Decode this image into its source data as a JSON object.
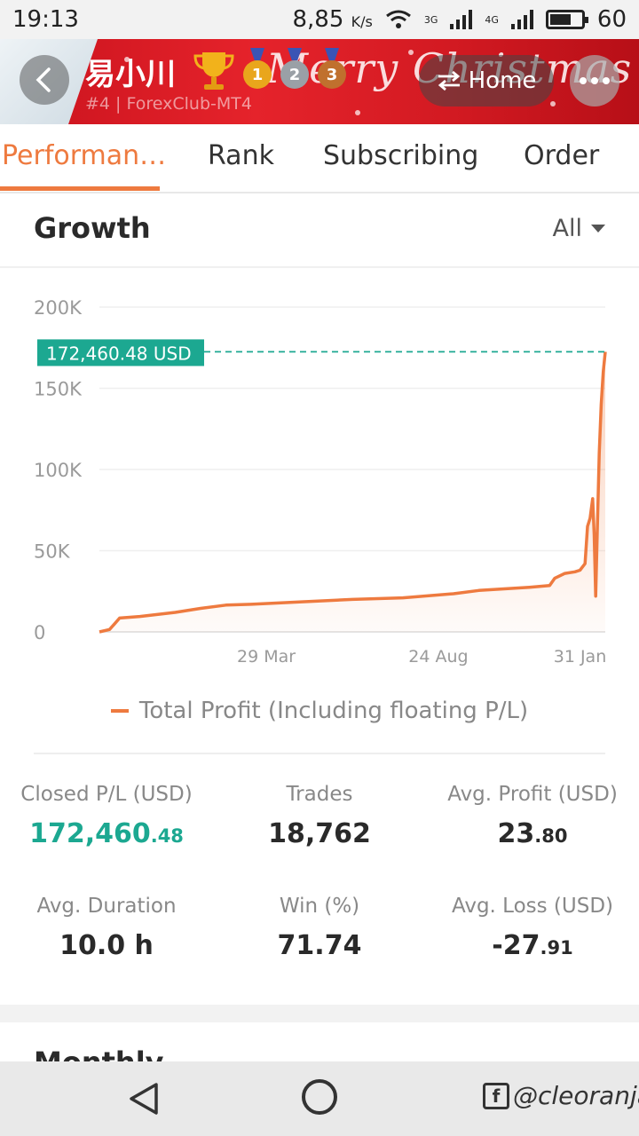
{
  "status_bar": {
    "time": "19:13",
    "speed": "8,85",
    "speed_unit": "K/s",
    "net1": "3G",
    "net2": "4G",
    "battery": "60"
  },
  "header": {
    "trader_name": "易小川",
    "subtitle": "#4 | ForexClub-MT4",
    "banner_text": "Merry Christmas",
    "medals": [
      "1",
      "2",
      "3"
    ],
    "home_label": "Home"
  },
  "tabs": [
    {
      "label": "Performan…",
      "active": true
    },
    {
      "label": "Rank",
      "active": false
    },
    {
      "label": "Subscribing",
      "active": false
    },
    {
      "label": "Order",
      "active": false
    }
  ],
  "growth": {
    "title": "Growth",
    "filter": "All"
  },
  "chart_data": {
    "type": "area",
    "y_ticks": [
      "200K",
      "150K",
      "100K",
      "50K",
      "0"
    ],
    "x_ticks": [
      "29 Mar",
      "24 Aug",
      "31 Jan"
    ],
    "ylim": [
      0,
      200000
    ],
    "current_value_label": "172,460.48 USD",
    "current_value": 172460.48,
    "series": [
      {
        "name": "Total Profit (Including floating P/L)",
        "color": "#ee7a3f",
        "points": [
          [
            0.0,
            0
          ],
          [
            0.02,
            1500
          ],
          [
            0.03,
            5000
          ],
          [
            0.04,
            8500
          ],
          [
            0.08,
            9500
          ],
          [
            0.15,
            12000
          ],
          [
            0.2,
            14500
          ],
          [
            0.25,
            16500
          ],
          [
            0.3,
            17000
          ],
          [
            0.4,
            18500
          ],
          [
            0.5,
            20000
          ],
          [
            0.6,
            21000
          ],
          [
            0.7,
            23500
          ],
          [
            0.75,
            25500
          ],
          [
            0.8,
            26500
          ],
          [
            0.85,
            27500
          ],
          [
            0.89,
            28500
          ],
          [
            0.9,
            33000
          ],
          [
            0.92,
            36000
          ],
          [
            0.94,
            37000
          ],
          [
            0.95,
            38000
          ],
          [
            0.96,
            42000
          ],
          [
            0.965,
            65000
          ],
          [
            0.97,
            70000
          ],
          [
            0.975,
            82000
          ],
          [
            0.978,
            60000
          ],
          [
            0.981,
            22000
          ],
          [
            0.984,
            60000
          ],
          [
            0.988,
            110000
          ],
          [
            0.992,
            140000
          ],
          [
            0.996,
            160000
          ],
          [
            1.0,
            172460
          ]
        ]
      }
    ]
  },
  "stats": [
    {
      "label": "Closed P/L (USD)",
      "value_main": "172,460",
      "value_dec": ".48",
      "style": "green"
    },
    {
      "label": "Trades",
      "value_main": "18,762",
      "value_dec": "",
      "style": "normal"
    },
    {
      "label": "Avg. Profit (USD)",
      "value_main": "23",
      "value_dec": ".80",
      "style": "normal"
    },
    {
      "label": "Avg. Duration",
      "value_main": "10.0 h",
      "value_dec": "",
      "style": "normal"
    },
    {
      "label": "Win (%)",
      "value_main": "71.74",
      "value_dec": "",
      "style": "normal"
    },
    {
      "label": "Avg. Loss (USD)",
      "value_main": "-27",
      "value_dec": ".91",
      "style": "normal"
    }
  ],
  "monthly": {
    "title": "Monthly"
  },
  "nav": {
    "watermark": "@cleoranja"
  }
}
